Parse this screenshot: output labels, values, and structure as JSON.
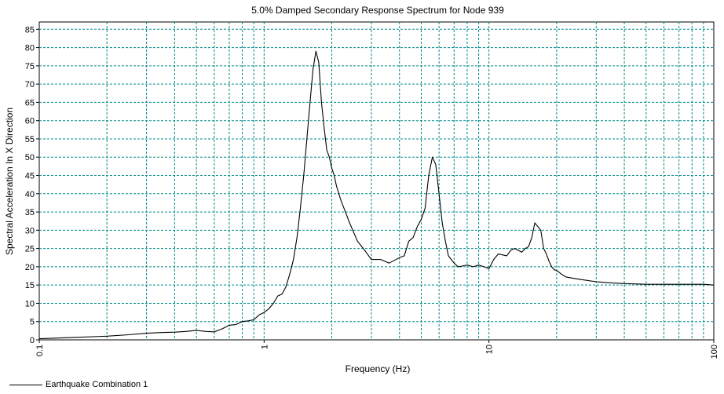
{
  "chart_data": {
    "type": "line",
    "title": "5.0% Damped Secondary Response Spectrum for Node 939",
    "xlabel": "Frequency (Hz)",
    "ylabel": "Spectral Acceleration In X Direction",
    "xscale": "log",
    "xlim": [
      0.1,
      100
    ],
    "ylim": [
      0,
      87
    ],
    "x_tick_labels": [
      "0.1",
      "1",
      "10",
      "100"
    ],
    "y_ticks": [
      0,
      5,
      10,
      15,
      20,
      25,
      30,
      35,
      40,
      45,
      50,
      55,
      60,
      65,
      70,
      75,
      80,
      85
    ],
    "grid": true,
    "legend_position": "bottom-left",
    "series": [
      {
        "name": "Earthquake Combination 1",
        "color": "#000000",
        "x": [
          0.1,
          0.15,
          0.2,
          0.25,
          0.3,
          0.35,
          0.4,
          0.45,
          0.5,
          0.55,
          0.6,
          0.65,
          0.7,
          0.75,
          0.8,
          0.85,
          0.9,
          0.95,
          1.0,
          1.05,
          1.1,
          1.15,
          1.2,
          1.25,
          1.3,
          1.35,
          1.4,
          1.45,
          1.5,
          1.55,
          1.6,
          1.65,
          1.7,
          1.75,
          1.8,
          1.85,
          1.9,
          1.95,
          2.0,
          2.05,
          2.1,
          2.2,
          2.3,
          2.4,
          2.6,
          2.8,
          3.0,
          3.3,
          3.6,
          4.0,
          4.2,
          4.4,
          4.6,
          4.8,
          5.0,
          5.2,
          5.4,
          5.6,
          5.8,
          6.0,
          6.2,
          6.4,
          6.6,
          6.8,
          7.0,
          7.3,
          7.6,
          8.0,
          8.5,
          9.0,
          9.5,
          10.0,
          10.5,
          11.0,
          12.0,
          12.5,
          13.0,
          14.0,
          14.5,
          15.0,
          15.5,
          16.0,
          17.0,
          17.5,
          18.0,
          18.5,
          19.0,
          19.5,
          20.0,
          21.0,
          22.0,
          24.0,
          27.0,
          30.0,
          35.0,
          40.0,
          50.0,
          60.0,
          70.0,
          80.0,
          90.0,
          100.0
        ],
        "y": [
          0.3,
          0.7,
          1.0,
          1.4,
          1.8,
          2.0,
          2.1,
          2.3,
          2.6,
          2.3,
          2.2,
          3.0,
          4.0,
          4.2,
          5.0,
          5.2,
          5.5,
          6.8,
          7.5,
          8.5,
          10.0,
          12.0,
          12.5,
          14.5,
          18.0,
          22.0,
          28.0,
          36.0,
          45.0,
          55.0,
          65.0,
          74.0,
          79.0,
          76.0,
          65.0,
          58.0,
          52.0,
          50.0,
          47.0,
          45.0,
          42.0,
          38.0,
          35.0,
          32.0,
          27.0,
          24.5,
          22.0,
          22.0,
          21.0,
          22.5,
          23.0,
          27.0,
          28.0,
          31.0,
          33.0,
          36.0,
          45.0,
          50.0,
          48.0,
          40.0,
          32.0,
          27.0,
          23.0,
          22.0,
          21.0,
          20.0,
          20.2,
          20.5,
          20.0,
          20.5,
          20.0,
          19.5,
          22.0,
          23.5,
          23.0,
          24.5,
          25.0,
          24.0,
          25.0,
          25.5,
          28.0,
          32.0,
          30.0,
          25.0,
          23.5,
          21.5,
          20.0,
          19.2,
          19.0,
          18.0,
          17.2,
          16.8,
          16.3,
          15.9,
          15.6,
          15.4,
          15.2,
          15.2,
          15.2,
          15.2,
          15.2,
          15.0
        ]
      }
    ]
  }
}
